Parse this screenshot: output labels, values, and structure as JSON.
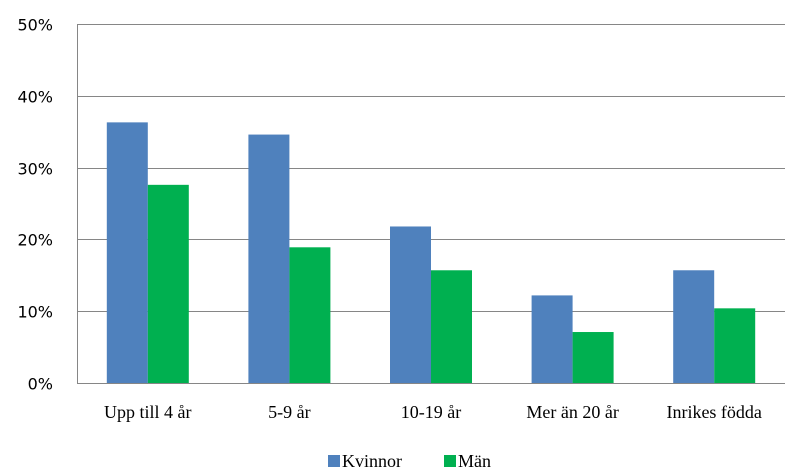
{
  "chart_data": {
    "type": "bar",
    "categories": [
      "Upp till 4 år",
      "5-9 år",
      "10-19 år",
      "Mer än 20 år",
      "Inrikes födda"
    ],
    "series": [
      {
        "name": "Kvinnor",
        "color": "#4F81BD",
        "values": [
          36.3,
          34.6,
          21.8,
          12.2,
          15.7
        ]
      },
      {
        "name": "Män",
        "color": "#00B050",
        "values": [
          27.6,
          18.9,
          15.7,
          7.1,
          10.4
        ]
      }
    ],
    "ylim": [
      0,
      50
    ],
    "yticks": [
      0,
      10,
      20,
      30,
      40,
      50
    ],
    "ytick_labels": [
      "0%",
      "10%",
      "20%",
      "30%",
      "40%",
      "50%"
    ],
    "grid": true,
    "legend_position": "bottom"
  }
}
